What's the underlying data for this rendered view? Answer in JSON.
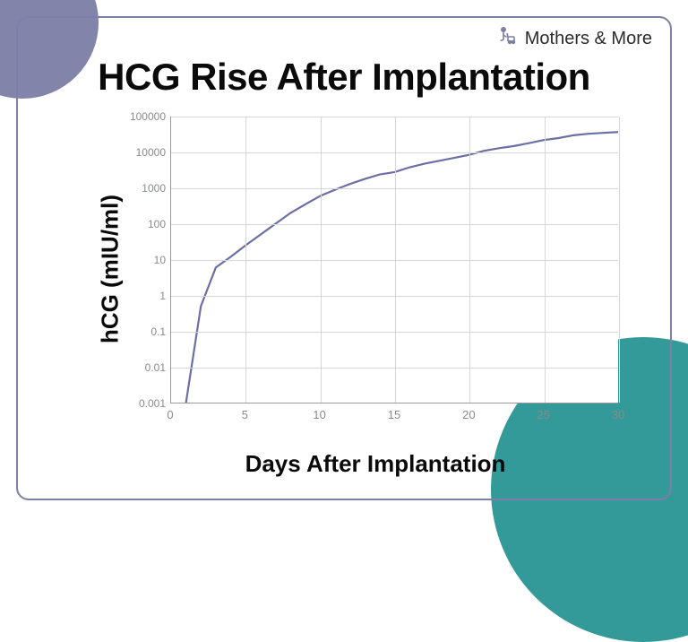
{
  "brand": {
    "text": "Mothers & More"
  },
  "title": "HCG Rise After Implantation",
  "y_label": "hCG (mIU/ml)",
  "x_label": "Days After Implantation",
  "colors": {
    "frame_border": "#7d7fa8",
    "blob_tl": "#8284a9",
    "blob_br": "#339999",
    "grid": "#d6d6d6",
    "tick_text": "#888a8c",
    "line": "#6b6fa3",
    "plot_bg": "#ffffff"
  },
  "chart": {
    "type": "line",
    "xlim": [
      0,
      30
    ],
    "y_scale": "log",
    "y_exp_range": [
      -3,
      5
    ],
    "y_ticks": [
      {
        "exp": -3,
        "label": "0.001"
      },
      {
        "exp": -2,
        "label": "0.01"
      },
      {
        "exp": -1,
        "label": "0.1"
      },
      {
        "exp": 0,
        "label": "1"
      },
      {
        "exp": 1,
        "label": "10"
      },
      {
        "exp": 2,
        "label": "100"
      },
      {
        "exp": 3,
        "label": "1000"
      },
      {
        "exp": 4,
        "label": "10000"
      },
      {
        "exp": 5,
        "label": "100000"
      }
    ],
    "x_ticks": [
      0,
      5,
      10,
      15,
      20,
      25,
      30
    ],
    "line_width": 2.2,
    "data": [
      {
        "x": 1,
        "y": 0.001
      },
      {
        "x": 2,
        "y": 0.5
      },
      {
        "x": 3,
        "y": 6
      },
      {
        "x": 4,
        "y": 12
      },
      {
        "x": 5,
        "y": 25
      },
      {
        "x": 6,
        "y": 50
      },
      {
        "x": 7,
        "y": 100
      },
      {
        "x": 8,
        "y": 200
      },
      {
        "x": 9,
        "y": 350
      },
      {
        "x": 10,
        "y": 600
      },
      {
        "x": 11,
        "y": 900
      },
      {
        "x": 12,
        "y": 1300
      },
      {
        "x": 13,
        "y": 1800
      },
      {
        "x": 14,
        "y": 2400
      },
      {
        "x": 15,
        "y": 2800
      },
      {
        "x": 16,
        "y": 3800
      },
      {
        "x": 17,
        "y": 4800
      },
      {
        "x": 18,
        "y": 5800
      },
      {
        "x": 19,
        "y": 7000
      },
      {
        "x": 20,
        "y": 8500
      },
      {
        "x": 21,
        "y": 11000
      },
      {
        "x": 22,
        "y": 13000
      },
      {
        "x": 23,
        "y": 15000
      },
      {
        "x": 24,
        "y": 18000
      },
      {
        "x": 25,
        "y": 22000
      },
      {
        "x": 26,
        "y": 25000
      },
      {
        "x": 27,
        "y": 30000
      },
      {
        "x": 28,
        "y": 33000
      },
      {
        "x": 29,
        "y": 35000
      },
      {
        "x": 30,
        "y": 37000
      }
    ]
  }
}
